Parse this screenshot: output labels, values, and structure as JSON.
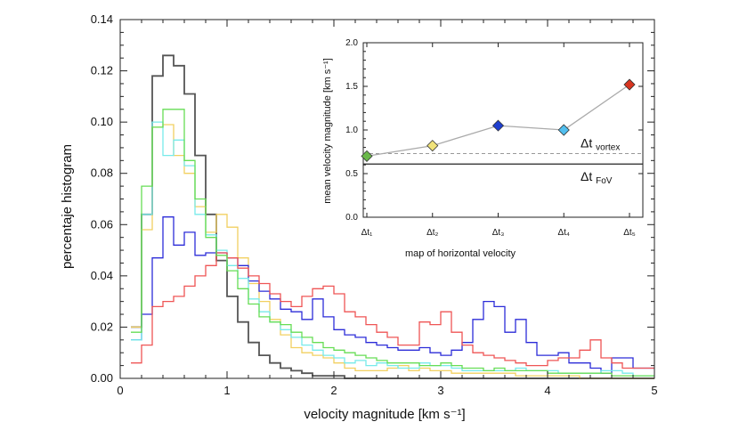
{
  "chart_data": [
    {
      "type": "line",
      "style": "step-histogram",
      "xlabel": "velocity magnitude [km s⁻¹]",
      "ylabel": "percentaje histogram",
      "xlim": [
        0,
        5
      ],
      "ylim": [
        0,
        0.14
      ],
      "xticks": [
        0,
        1,
        2,
        3,
        4,
        5
      ],
      "xtick_labels": [
        "0",
        "1",
        "2",
        "3",
        "4",
        "5"
      ],
      "yticks": [
        0,
        0.02,
        0.04,
        0.06,
        0.08,
        0.1,
        0.12,
        0.14
      ],
      "ytick_labels": [
        "0.00",
        "0.02",
        "0.04",
        "0.06",
        "0.08",
        "0.10",
        "0.12",
        "0.14"
      ],
      "bin_width": 0.1,
      "bin_starts": [
        0.1,
        0.2,
        0.3,
        0.4,
        0.5,
        0.6,
        0.7,
        0.8,
        0.9,
        1.0,
        1.1,
        1.2,
        1.3,
        1.4,
        1.5,
        1.6,
        1.7,
        1.8,
        1.9,
        2.0,
        2.1,
        2.2,
        2.3,
        2.4,
        2.5,
        2.6,
        2.7,
        2.8,
        2.9,
        3.0,
        3.1,
        3.2,
        3.3,
        3.4,
        3.5,
        3.6,
        3.7,
        3.8,
        3.9,
        4.0,
        4.1,
        4.2,
        4.3,
        4.4,
        4.5,
        4.6,
        4.7,
        4.8,
        4.9
      ],
      "series": [
        {
          "name": "Δt₁",
          "color": "#555555",
          "values": [
            0.02,
            0.064,
            0.118,
            0.126,
            0.122,
            0.111,
            0.087,
            0.064,
            0.046,
            0.032,
            0.022,
            0.014,
            0.009,
            0.006,
            0.004,
            0.003,
            0.002,
            0.001,
            0.001,
            0.001,
            0,
            0,
            0,
            0,
            0,
            0,
            0,
            0,
            0,
            0,
            0,
            0,
            0,
            0,
            0,
            0,
            0,
            0,
            0,
            0,
            0,
            0,
            0,
            0,
            0,
            0,
            0,
            0,
            0
          ]
        },
        {
          "name": "Δt₂",
          "color": "#f2d060",
          "values": [
            0.02,
            0.058,
            0.098,
            0.099,
            0.087,
            0.08,
            0.067,
            0.057,
            0.064,
            0.059,
            0.047,
            0.037,
            0.03,
            0.023,
            0.017,
            0.012,
            0.01,
            0.009,
            0.008,
            0.006,
            0.004,
            0.003,
            0.003,
            0.003,
            0.004,
            0.005,
            0.003,
            0.004,
            0.003,
            0.003,
            0.002,
            0.002,
            0.002,
            0.002,
            0.002,
            0.002,
            0.001,
            0.001,
            0.001,
            0.001,
            0.001,
            0.001,
            0,
            0,
            0,
            0,
            0,
            0,
            0
          ]
        },
        {
          "name": "Δt₃",
          "color": "#2c2cd8",
          "values": [
            0.015,
            0.025,
            0.047,
            0.063,
            0.052,
            0.057,
            0.048,
            0.049,
            0.049,
            0.047,
            0.044,
            0.038,
            0.034,
            0.031,
            0.027,
            0.026,
            0.023,
            0.031,
            0.024,
            0.019,
            0.017,
            0.016,
            0.014,
            0.013,
            0.012,
            0.011,
            0.011,
            0.012,
            0.01,
            0.009,
            0.011,
            0.014,
            0.023,
            0.03,
            0.028,
            0.018,
            0.023,
            0.014,
            0.009,
            0.009,
            0.01,
            0.006,
            0.006,
            0.004,
            0.002,
            0.008,
            0.008,
            0.004,
            0.004
          ]
        },
        {
          "name": "Δt₄",
          "color": "#77eaea",
          "values": [
            0.015,
            0.064,
            0.1,
            0.087,
            0.093,
            0.083,
            0.064,
            0.056,
            0.05,
            0.044,
            0.039,
            0.031,
            0.026,
            0.022,
            0.019,
            0.016,
            0.013,
            0.011,
            0.009,
            0.008,
            0.006,
            0.007,
            0.005,
            0.006,
            0.005,
            0.004,
            0.004,
            0.006,
            0.005,
            0.005,
            0.004,
            0.003,
            0.003,
            0.003,
            0.003,
            0.003,
            0.004,
            0.003,
            0.003,
            0.003,
            0.002,
            0.002,
            0.002,
            0.002,
            0.003,
            0.003,
            0.002,
            0.001,
            0.001
          ]
        },
        {
          "name": "Δt₅",
          "color": "#ef5555",
          "values": [
            0.006,
            0.013,
            0.028,
            0.03,
            0.032,
            0.036,
            0.04,
            0.044,
            0.049,
            0.047,
            0.043,
            0.04,
            0.037,
            0.033,
            0.03,
            0.028,
            0.032,
            0.035,
            0.036,
            0.033,
            0.026,
            0.024,
            0.021,
            0.018,
            0.016,
            0.013,
            0.013,
            0.022,
            0.021,
            0.026,
            0.018,
            0.013,
            0.01,
            0.009,
            0.008,
            0.007,
            0.006,
            0.005,
            0.005,
            0.007,
            0.008,
            0.008,
            0.011,
            0.015,
            0.008,
            0.006,
            0.004,
            0.004,
            0.004
          ]
        },
        {
          "name": "green",
          "color": "#66dd55",
          "values": [
            0.018,
            0.075,
            0.098,
            0.105,
            0.105,
            0.085,
            0.07,
            0.055,
            0.048,
            0.042,
            0.035,
            0.029,
            0.024,
            0.022,
            0.021,
            0.018,
            0.016,
            0.014,
            0.012,
            0.011,
            0.01,
            0.009,
            0.008,
            0.007,
            0.006,
            0.006,
            0.006,
            0.005,
            0.005,
            0.006,
            0.005,
            0.004,
            0.004,
            0.003,
            0.004,
            0.003,
            0.003,
            0.003,
            0.003,
            0.002,
            0.002,
            0.002,
            0.002,
            0.002,
            0.002,
            0.001,
            0.001,
            0.001,
            0.001
          ]
        }
      ]
    },
    {
      "type": "line",
      "position": "top-right inset",
      "xlabel": "map of horizontal velocity",
      "ylabel": "mean velocity magnitude [km s⁻¹]",
      "ylim": [
        0,
        2.0
      ],
      "yticks": [
        0,
        0.5,
        1.0,
        1.5,
        2.0
      ],
      "ytick_labels": [
        "0.0",
        "0.5",
        "1.0",
        "1.5",
        "2.0"
      ],
      "categories": [
        "Δt₁",
        "Δt₂",
        "Δt₃",
        "Δt₄",
        "Δt₅"
      ],
      "values": [
        0.7,
        0.82,
        1.05,
        1.0,
        1.52
      ],
      "marker_colors": [
        "#6ab84a",
        "#f0e27a",
        "#1f3fcf",
        "#52bfef",
        "#d8351f"
      ],
      "line_color": "#aaaaaa",
      "reference_lines": [
        {
          "label": "Δt",
          "sub": "vortex",
          "value": 0.73,
          "style": "dashed"
        },
        {
          "label": "Δt",
          "sub": "FoV",
          "value": 0.61,
          "style": "solid"
        }
      ]
    }
  ]
}
